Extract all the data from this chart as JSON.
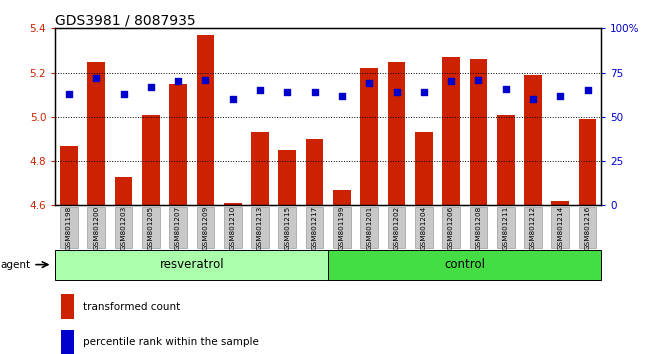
{
  "title": "GDS3981 / 8087935",
  "samples": [
    "GSM801198",
    "GSM801200",
    "GSM801203",
    "GSM801205",
    "GSM801207",
    "GSM801209",
    "GSM801210",
    "GSM801213",
    "GSM801215",
    "GSM801217",
    "GSM801199",
    "GSM801201",
    "GSM801202",
    "GSM801204",
    "GSM801206",
    "GSM801208",
    "GSM801211",
    "GSM801212",
    "GSM801214",
    "GSM801216"
  ],
  "bar_values": [
    4.87,
    5.25,
    4.73,
    5.01,
    5.15,
    5.37,
    4.61,
    4.93,
    4.85,
    4.9,
    4.67,
    5.22,
    5.25,
    4.93,
    5.27,
    5.26,
    5.01,
    5.19,
    4.62,
    4.99
  ],
  "percentile_values": [
    63,
    72,
    63,
    67,
    70,
    71,
    60,
    65,
    64,
    64,
    62,
    69,
    64,
    64,
    70,
    71,
    66,
    60,
    62,
    65
  ],
  "groups": [
    {
      "label": "resveratrol",
      "start": 0,
      "end": 10,
      "color": "#aaffaa"
    },
    {
      "label": "control",
      "start": 10,
      "end": 20,
      "color": "#44dd44"
    }
  ],
  "ylim": [
    4.6,
    5.4
  ],
  "yticks": [
    4.6,
    4.8,
    5.0,
    5.2,
    5.4
  ],
  "right_yticks": [
    0,
    25,
    50,
    75,
    100
  ],
  "right_ytick_labels": [
    "0",
    "25",
    "50",
    "75",
    "100%"
  ],
  "bar_color": "#cc2200",
  "dot_color": "#0000cc",
  "bar_width": 0.65,
  "dot_size": 22,
  "agent_label": "agent",
  "legend_items": [
    {
      "color": "#cc2200",
      "label": "transformed count"
    },
    {
      "color": "#0000cc",
      "label": "percentile rank within the sample"
    }
  ],
  "axis_label_color_left": "#cc2200",
  "axis_label_color_right": "#0000cc",
  "title_fontsize": 10,
  "tick_fontsize": 7.5,
  "group_label_fontsize": 8.5
}
